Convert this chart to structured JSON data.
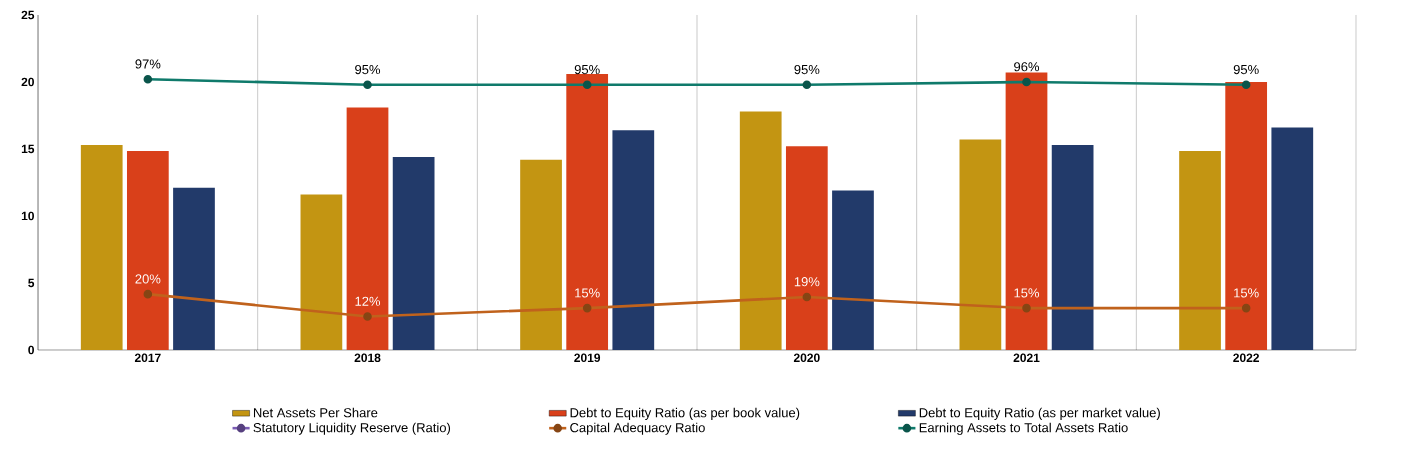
{
  "chart_data": {
    "type": "bar",
    "categories": [
      "2017",
      "2018",
      "2019",
      "2020",
      "2021",
      "2022"
    ],
    "ylim": [
      0,
      25
    ],
    "yticks": [
      0,
      5,
      10,
      15,
      20,
      25
    ],
    "y2lim": [
      0,
      120
    ],
    "grid": "x",
    "legend": "bottom",
    "marker": "circle",
    "series": [
      {
        "name": "Net Assets Per Share",
        "color": "#c39512",
        "values": [
          15.3,
          11.6,
          14.2,
          17.8,
          15.7,
          14.85
        ]
      },
      {
        "name": "Debt to Equity Ratio (as per book value)",
        "color": "#d9401a",
        "values": [
          14.85,
          18.1,
          20.6,
          15.2,
          20.7,
          20.0
        ]
      },
      {
        "name": "Debt to Equity Ratio (as per market value)",
        "color": "#223a6a",
        "values": [
          12.1,
          14.4,
          16.4,
          11.9,
          15.3,
          16.6
        ]
      },
      {
        "name": "Statutory Liquidity Reserve (Ratio)",
        "color": "#7b5cb5",
        "type": "line",
        "axis": "y2",
        "values": [
          null,
          null,
          null,
          null,
          null,
          null
        ]
      },
      {
        "name": "Capital Adequacy Ratio",
        "color": "#c0621c",
        "type": "line",
        "axis": "y2",
        "values": [
          20,
          12,
          15,
          19,
          15,
          15
        ],
        "value_labels": [
          "20%",
          "12%",
          "15%",
          "19%",
          "15%",
          "15%"
        ]
      },
      {
        "name": "Earning Assets to Total Assets Ratio",
        "color": "#0f7a6b",
        "type": "line",
        "axis": "y2",
        "values": [
          97,
          95,
          95,
          95,
          96,
          95
        ],
        "value_labels": [
          "97%",
          "95%",
          "95%",
          "95%",
          "96%",
          "95%"
        ]
      }
    ]
  }
}
